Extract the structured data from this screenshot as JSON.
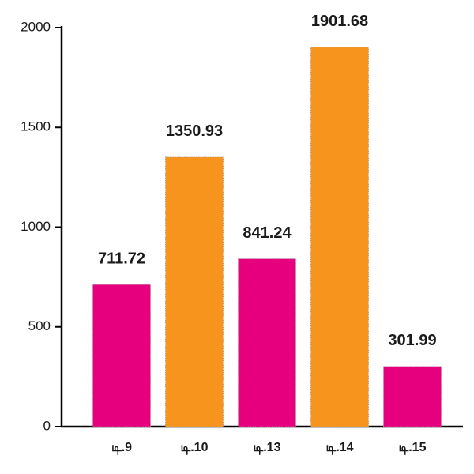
{
  "chart_data": {
    "type": "bar",
    "categories": [
      "டி.9",
      "டி.10",
      "டி.13",
      "டி.14",
      "டி.15"
    ],
    "values": [
      711.72,
      1350.93,
      841.24,
      1901.68,
      301.99
    ],
    "colors": [
      "#e6007e",
      "#f7941d",
      "#e6007e",
      "#f7941d",
      "#e6007e"
    ],
    "ylim": [
      0,
      2000
    ],
    "yticks": [
      0,
      500,
      1000,
      1500,
      2000
    ]
  }
}
